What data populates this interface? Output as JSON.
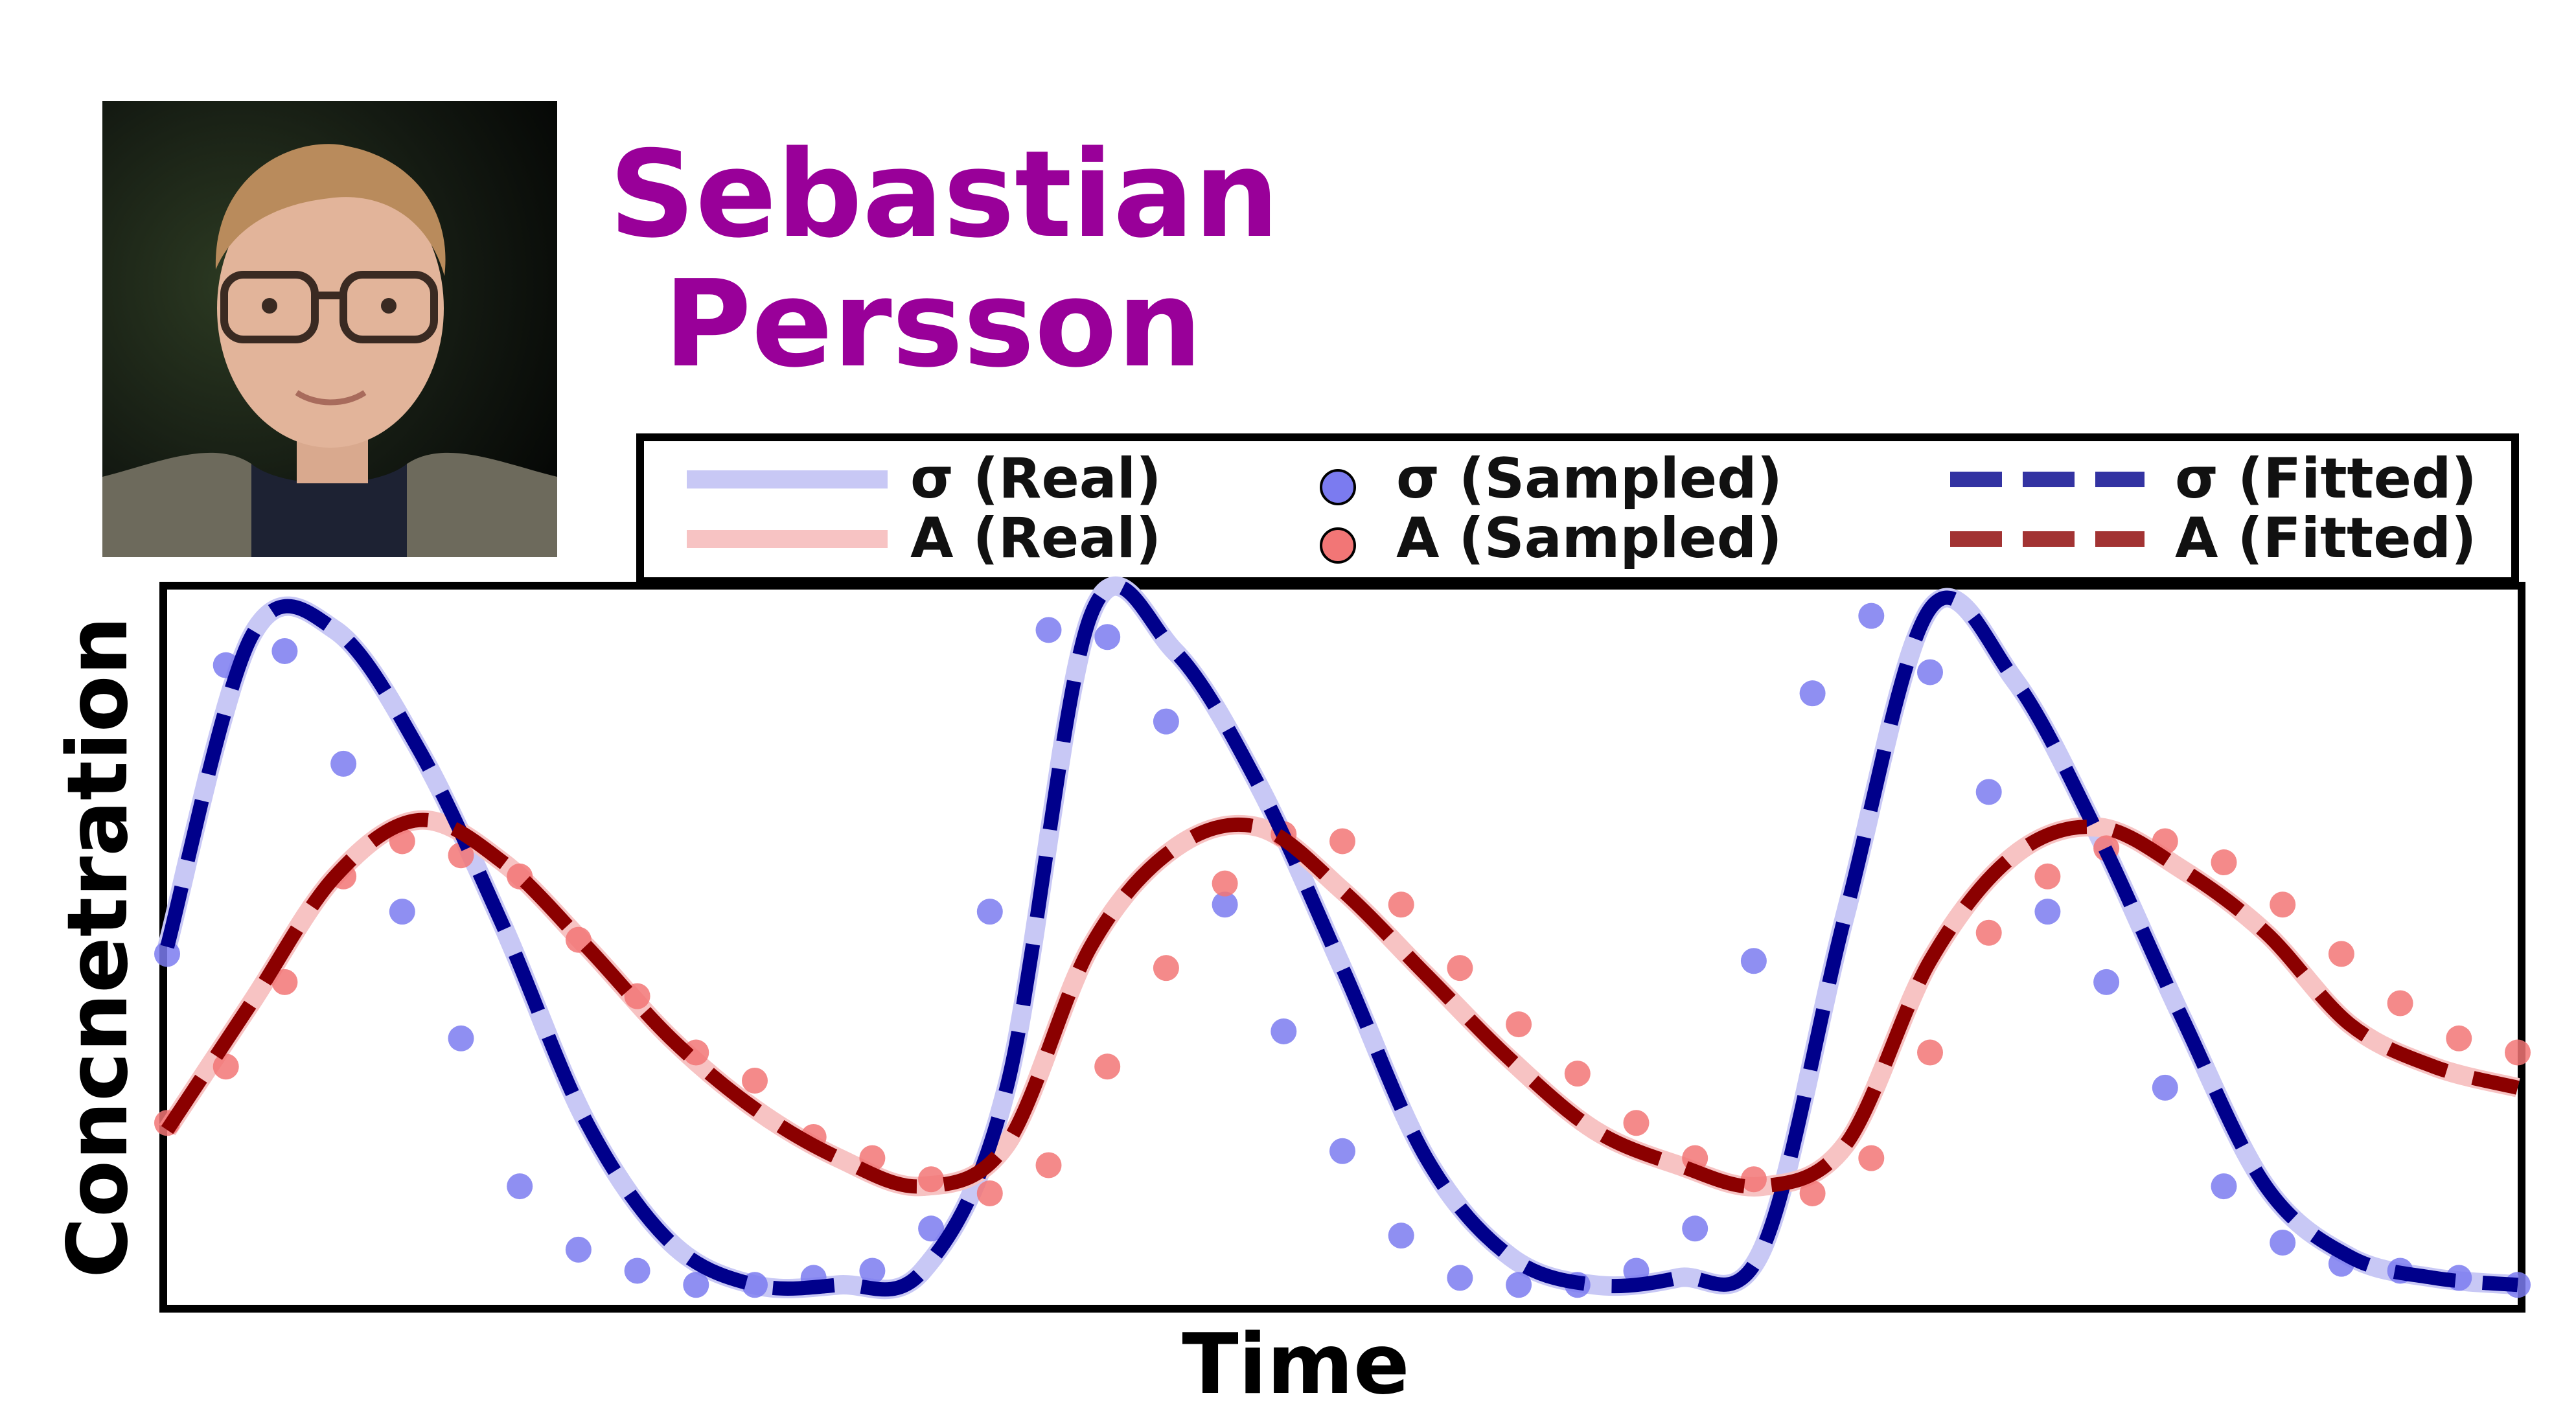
{
  "profile": {
    "name_line1": "Sebastian",
    "name_line2": "Persson",
    "name_color": "#990099"
  },
  "chart_data": {
    "type": "line",
    "xlabel": "Time",
    "ylabel": "Concnetration",
    "xlim": [
      0,
      28
    ],
    "ylim": [
      0,
      1
    ],
    "grid": false,
    "legend_position": "top",
    "ticks_shown": false,
    "legend": {
      "sigma_real": "σ (Real)",
      "a_real": "A (Real)",
      "sigma_sampled": "σ (Sampled)",
      "a_sampled": "A (Sampled)",
      "sigma_fitted": "σ (Fitted)",
      "a_fitted": "A (Fitted)"
    },
    "colors": {
      "sigma_real": "#c8c8f5",
      "a_real": "#f7c3c3",
      "sigma_sampled": "#7b7bf0",
      "a_sampled": "#f27676",
      "sigma_fitted": "#00008b",
      "a_fitted": "#8b0000"
    },
    "series": [
      {
        "name": "σ (Real)",
        "style": "solid-light",
        "color": "#c8c8f5",
        "x": [
          0,
          1,
          2,
          3,
          4,
          5,
          6,
          7,
          8,
          9,
          10,
          11,
          12,
          13,
          14,
          15,
          16,
          17,
          18,
          19,
          20,
          21,
          22,
          23,
          24,
          25,
          26,
          27,
          28
        ],
        "y": [
          0.5,
          0.94,
          0.95,
          0.78,
          0.53,
          0.25,
          0.08,
          0.02,
          0.02,
          0.04,
          0.3,
          0.97,
          0.92,
          0.73,
          0.47,
          0.2,
          0.06,
          0.02,
          0.03,
          0.07,
          0.55,
          0.98,
          0.88,
          0.66,
          0.4,
          0.16,
          0.06,
          0.03,
          0.02
        ]
      },
      {
        "name": "A (Real)",
        "style": "solid-light",
        "color": "#f7c3c3",
        "x": [
          0,
          1,
          2,
          3,
          4,
          5,
          6,
          7,
          8,
          9,
          10,
          11,
          12,
          13,
          14,
          15,
          16,
          17,
          18,
          19,
          20,
          21,
          22,
          23,
          24,
          25,
          26,
          27,
          28
        ],
        "y": [
          0.24,
          0.42,
          0.6,
          0.68,
          0.62,
          0.5,
          0.37,
          0.27,
          0.2,
          0.16,
          0.22,
          0.5,
          0.64,
          0.67,
          0.58,
          0.46,
          0.34,
          0.24,
          0.19,
          0.16,
          0.22,
          0.48,
          0.63,
          0.67,
          0.61,
          0.52,
          0.39,
          0.33,
          0.3
        ]
      },
      {
        "name": "σ (Sampled)",
        "style": "markers",
        "color": "#7b7bf0",
        "x": [
          0,
          0.7,
          1.4,
          2.1,
          2.8,
          3.5,
          4.2,
          4.9,
          5.6,
          6.3,
          7.0,
          7.7,
          8.4,
          9.1,
          9.8,
          10.5,
          11.2,
          11.9,
          12.6,
          13.3,
          14.0,
          14.7,
          15.4,
          16.1,
          16.8,
          17.5,
          18.2,
          18.9,
          19.6,
          20.3,
          21.0,
          21.7,
          22.4,
          23.1,
          23.8,
          24.5,
          25.2,
          25.9,
          26.6,
          27.3,
          28.0
        ],
        "y": [
          0.49,
          0.9,
          0.92,
          0.76,
          0.55,
          0.37,
          0.16,
          0.07,
          0.04,
          0.02,
          0.02,
          0.03,
          0.04,
          0.1,
          0.55,
          0.95,
          0.94,
          0.82,
          0.56,
          0.38,
          0.21,
          0.09,
          0.03,
          0.02,
          0.02,
          0.04,
          0.1,
          0.48,
          0.86,
          0.97,
          0.89,
          0.72,
          0.55,
          0.45,
          0.3,
          0.16,
          0.08,
          0.05,
          0.04,
          0.03,
          0.02
        ]
      },
      {
        "name": "A (Sampled)",
        "style": "markers",
        "color": "#f27676",
        "x": [
          0,
          0.7,
          1.4,
          2.1,
          2.8,
          3.5,
          4.2,
          4.9,
          5.6,
          6.3,
          7.0,
          7.7,
          8.4,
          9.1,
          9.8,
          10.5,
          11.2,
          11.9,
          12.6,
          13.3,
          14.0,
          14.7,
          15.4,
          16.1,
          16.8,
          17.5,
          18.2,
          18.9,
          19.6,
          20.3,
          21.0,
          21.7,
          22.4,
          23.1,
          23.8,
          24.5,
          25.2,
          25.9,
          26.6,
          27.3,
          28.0
        ],
        "y": [
          0.25,
          0.33,
          0.45,
          0.6,
          0.65,
          0.63,
          0.6,
          0.51,
          0.43,
          0.35,
          0.31,
          0.23,
          0.2,
          0.17,
          0.15,
          0.19,
          0.33,
          0.47,
          0.59,
          0.66,
          0.65,
          0.56,
          0.47,
          0.39,
          0.32,
          0.25,
          0.2,
          0.17,
          0.15,
          0.2,
          0.35,
          0.52,
          0.6,
          0.64,
          0.65,
          0.62,
          0.56,
          0.49,
          0.42,
          0.37,
          0.35
        ]
      },
      {
        "name": "σ (Fitted)",
        "style": "dashed",
        "color": "#00008b",
        "x": [
          0,
          1,
          2,
          3,
          4,
          5,
          6,
          7,
          8,
          9,
          10,
          11,
          12,
          13,
          14,
          15,
          16,
          17,
          18,
          19,
          20,
          21,
          22,
          23,
          24,
          25,
          26,
          27,
          28
        ],
        "y": [
          0.5,
          0.94,
          0.95,
          0.78,
          0.53,
          0.25,
          0.08,
          0.02,
          0.02,
          0.04,
          0.3,
          0.97,
          0.92,
          0.73,
          0.47,
          0.2,
          0.06,
          0.02,
          0.03,
          0.07,
          0.55,
          0.98,
          0.88,
          0.66,
          0.4,
          0.16,
          0.06,
          0.03,
          0.02
        ]
      },
      {
        "name": "A (Fitted)",
        "style": "dashed",
        "color": "#8b0000",
        "x": [
          0,
          1,
          2,
          3,
          4,
          5,
          6,
          7,
          8,
          9,
          10,
          11,
          12,
          13,
          14,
          15,
          16,
          17,
          18,
          19,
          20,
          21,
          22,
          23,
          24,
          25,
          26,
          27,
          28
        ],
        "y": [
          0.24,
          0.42,
          0.6,
          0.68,
          0.62,
          0.5,
          0.37,
          0.27,
          0.2,
          0.16,
          0.22,
          0.5,
          0.64,
          0.67,
          0.58,
          0.46,
          0.34,
          0.24,
          0.19,
          0.16,
          0.22,
          0.48,
          0.63,
          0.67,
          0.61,
          0.52,
          0.39,
          0.33,
          0.3
        ]
      }
    ]
  }
}
